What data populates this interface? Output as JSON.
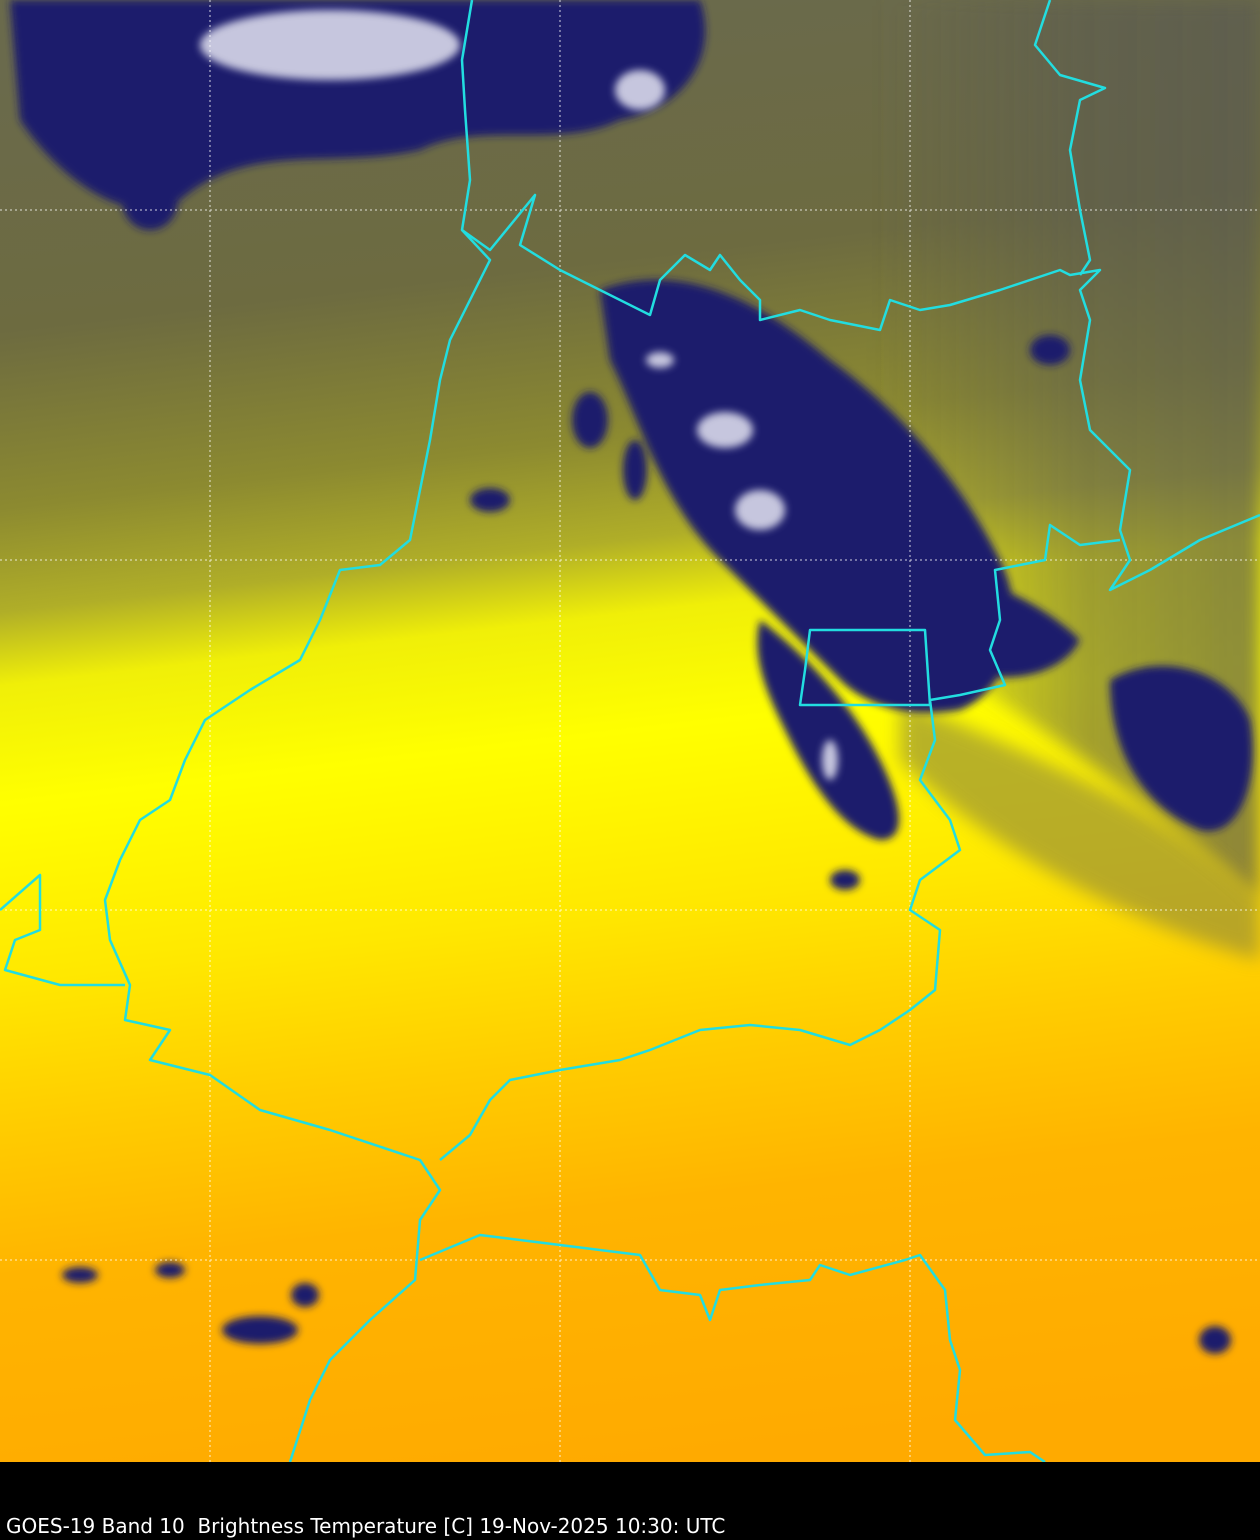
{
  "caption": "GOES-19 Band 10  Brightness Temperature [C] 19-Nov-2025 10:30: UTC"
}
